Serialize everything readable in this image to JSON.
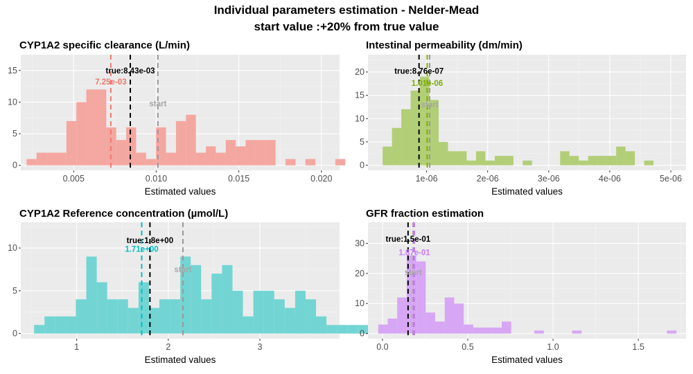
{
  "figure": {
    "title_line1": "Individual parameters estimation - Nelder-Mead",
    "title_line2": "start value :+20% from true value"
  },
  "colors": {
    "panel_bg": "#EBEBEB",
    "grid_major": "#FFFFFF",
    "true_line": "#000000",
    "start_line": "#999999",
    "start_text": "#A6A6A6"
  },
  "chart_data": [
    {
      "type": "bar",
      "title": "CYP1A2 specific clearance (L/min)",
      "xlabel": "Estimated values",
      "ylabel": "",
      "fill": "#F4A7A0",
      "estimate_color": "#F0786C",
      "xlim": [
        0.0018,
        0.0211
      ],
      "ylim": [
        -0.8,
        17.5
      ],
      "xticks": [
        0.005,
        0.01,
        0.015,
        0.02
      ],
      "xtick_labels": [
        "0.005",
        "0.010",
        "0.015",
        "0.020"
      ],
      "yticks": [
        0,
        5,
        10,
        15
      ],
      "ytick_labels": [
        "0",
        "5",
        "10",
        "15"
      ],
      "bin_start": 0.00215,
      "bin_width": 0.000603,
      "counts": [
        1,
        2,
        2,
        2,
        7,
        10,
        12,
        12,
        6,
        4,
        6,
        2,
        1,
        6,
        2,
        7,
        8,
        2,
        3,
        2,
        4,
        3,
        4,
        4,
        4,
        0,
        1,
        0,
        1,
        0,
        0,
        1,
        0,
        0,
        0,
        1,
        0,
        0,
        1
      ],
      "true_value": 0.00843,
      "true_label": "true:8.43e-03",
      "estimate_value": 0.00725,
      "estimate_label": "7.25e-03",
      "start_value": 0.0101,
      "start_label": "start",
      "true_label_y": 15.0,
      "estimate_label_y": 13.2,
      "start_label_y": 9.8
    },
    {
      "type": "bar",
      "title": "Intestinal permeability (dm/min)",
      "xlabel": "Estimated values",
      "ylabel": "",
      "fill": "#B2CE77",
      "estimate_color": "#7CAE00",
      "xlim": [
        4e-08,
        5.25e-06
      ],
      "ylim": [
        -1.1,
        23.7
      ],
      "xticks": [
        1e-06,
        2e-06,
        3e-06,
        4e-06,
        5e-06
      ],
      "xtick_labels": [
        "1e-06",
        "2e-06",
        "3e-06",
        "4e-06",
        "5e-06"
      ],
      "yticks": [
        0,
        5,
        10,
        15,
        20
      ],
      "ytick_labels": [
        "0",
        "5",
        "10",
        "15",
        "20"
      ],
      "bin_start": 2.8e-07,
      "bin_width": 1.53e-07,
      "counts": [
        4,
        8,
        12,
        16,
        19,
        14,
        5,
        3,
        3,
        1,
        3,
        1,
        2,
        2,
        0,
        1,
        0,
        0,
        0,
        3,
        2,
        1,
        2,
        2,
        2,
        4,
        3,
        0,
        1,
        0,
        0,
        0,
        0,
        0,
        1
      ],
      "true_value": 8.76e-07,
      "true_label": "true:8.76e-07",
      "estimate_value": 1.01e-06,
      "estimate_label": "1.01e-06",
      "start_value": 1.05e-06,
      "start_label": "start",
      "true_label_y": 20.2,
      "estimate_label_y": 17.6,
      "start_label_y": 13.0
    },
    {
      "type": "bar",
      "title": "CYP1A2 Reference concentration (µmol/L)",
      "xlabel": "Estimated values",
      "ylabel": "",
      "fill": "#72D5D3",
      "estimate_color": "#00BFC4",
      "xlim": [
        0.39,
        3.87
      ],
      "ylim": [
        -0.6,
        13.0
      ],
      "xticks": [
        1,
        2,
        3
      ],
      "xtick_labels": [
        "1",
        "2",
        "3"
      ],
      "yticks": [
        0,
        5,
        10
      ],
      "ytick_labels": [
        "0",
        "5",
        "10"
      ],
      "bin_start": 0.535,
      "bin_width": 0.114,
      "counts": [
        1,
        2,
        2,
        2,
        4,
        9,
        6,
        4,
        4,
        3,
        6,
        3,
        4,
        4,
        9,
        8,
        4,
        7,
        8,
        5,
        2,
        5,
        5,
        4,
        3,
        5,
        4,
        2,
        1,
        1,
        1,
        1,
        1,
        0,
        0,
        0,
        0,
        0,
        0,
        0,
        0,
        0,
        0,
        0,
        0,
        0,
        0,
        0,
        0,
        0,
        0,
        0,
        0
      ],
      "counts_tail_note": "",
      "extra_bins": [
        [
          3.38,
          3.492,
          2
        ],
        [
          3.596,
          3.708,
          1
        ]
      ],
      "true_value": 1.8,
      "true_label": "true:1.8e+00",
      "estimate_value": 1.71,
      "estimate_label": "1.71e+00",
      "start_value": 2.16,
      "start_label": "start",
      "true_label_y": 10.9,
      "estimate_label_y": 9.9,
      "start_label_y": 7.5
    },
    {
      "type": "bar",
      "title": "GFR fraction estimation",
      "xlabel": "Estimated values",
      "ylabel": "",
      "fill": "#D7A6F4",
      "estimate_color": "#C77CFF",
      "xlim": [
        -0.085,
        1.78
      ],
      "ylim": [
        -1.7,
        37.0
      ],
      "xticks": [
        0.0,
        0.5,
        1.0,
        1.5
      ],
      "xtick_labels": [
        "0.0",
        "0.5",
        "1.0",
        "1.5"
      ],
      "yticks": [
        0,
        10,
        20,
        30
      ],
      "ytick_labels": [
        "0",
        "10",
        "20",
        "30"
      ],
      "bin_start": -0.025,
      "bin_width": 0.0557,
      "counts": [
        3,
        5,
        12,
        26,
        24,
        7,
        4,
        12,
        10,
        3,
        2,
        2,
        2,
        4,
        0,
        0,
        0,
        0,
        0,
        0,
        0,
        0,
        0,
        0,
        0,
        0,
        0,
        0,
        0,
        0,
        0,
        0
      ],
      "extra_bins": [
        [
          0.89,
          0.946,
          1
        ],
        [
          1.112,
          1.168,
          1
        ],
        [
          1.668,
          1.724,
          1
        ]
      ],
      "true_value": 0.15,
      "true_label": "true:1.5e-01",
      "estimate_value": 0.187,
      "estimate_label": "1.87e-01",
      "start_value": 0.18,
      "start_label": "start",
      "true_label_y": 31.5,
      "estimate_label_y": 27.0,
      "start_label_y": 20.4
    }
  ]
}
